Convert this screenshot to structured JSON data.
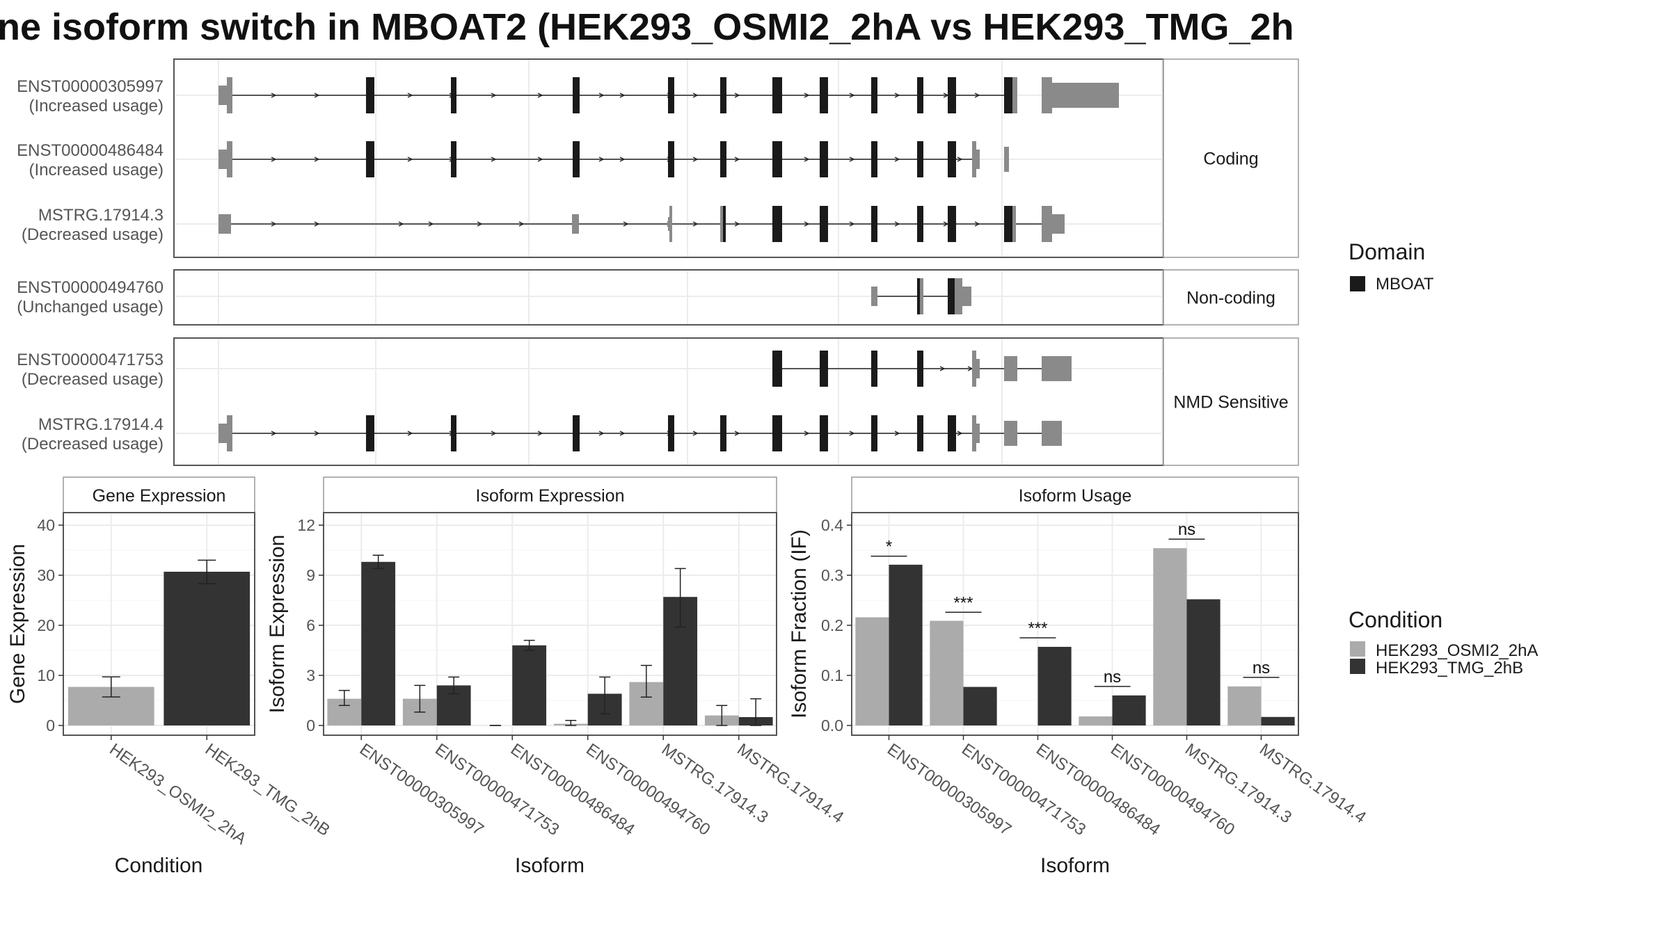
{
  "title": "ne isoform switch in MBOAT2 (HEK293_OSMI2_2hA vs HEK293_TMG_2h",
  "colors": {
    "cond_a": "#ababab",
    "cond_b": "#333333",
    "exon": "#8a8a8a",
    "domain": "#1a1a1a",
    "grid": "#ececec",
    "strip_border": "#999999",
    "panel_border": "#555555"
  },
  "structure": {
    "strips": [
      "Coding",
      "Non-coding",
      "NMD Sensitive"
    ],
    "transcripts": [
      {
        "id": "ENST00000305997",
        "usage": "(Increased usage)",
        "group": 0
      },
      {
        "id": "ENST00000486484",
        "usage": "(Increased usage)",
        "group": 0
      },
      {
        "id": "MSTRG.17914.3",
        "usage": "(Decreased usage)",
        "group": 0
      },
      {
        "id": "ENST00000494760",
        "usage": "(Unchanged usage)",
        "group": 1
      },
      {
        "id": "ENST00000471753",
        "usage": "(Decreased usage)",
        "group": 2
      },
      {
        "id": "MSTRG.17914.4",
        "usage": "(Decreased usage)",
        "group": 2
      }
    ]
  },
  "legend": {
    "domain_title": "Domain",
    "domain_items": [
      "MBOAT"
    ],
    "condition_title": "Condition",
    "condition_items": [
      "HEK293_OSMI2_2hA",
      "HEK293_TMG_2hB"
    ]
  },
  "chart_data": [
    {
      "type": "bar",
      "title": "Gene Expression",
      "xlabel": "Condition",
      "ylabel": "Gene Expression",
      "ylim": [
        0,
        40
      ],
      "yticks": [
        0,
        10,
        20,
        30,
        40
      ],
      "categories": [
        "HEK293_OSMI2_2hA",
        "HEK293_TMG_2hB"
      ],
      "values": [
        7.7,
        30.7
      ],
      "errors": [
        [
          5.7,
          9.7
        ],
        [
          28.3,
          33.0
        ]
      ],
      "grid": true
    },
    {
      "type": "bar",
      "title": "Isoform Expression",
      "xlabel": "Isoform",
      "ylabel": "Isoform Expression",
      "ylim": [
        0,
        12
      ],
      "yticks": [
        0,
        3,
        6,
        9,
        12
      ],
      "categories": [
        "ENST00000305997",
        "ENST00000471753",
        "ENST00000486484",
        "ENST00000494760",
        "MSTRG.17914.3",
        "MSTRG.17914.4"
      ],
      "series": [
        {
          "name": "HEK293_OSMI2_2hA",
          "values": [
            1.6,
            1.6,
            0.0,
            0.1,
            2.6,
            0.6
          ],
          "errors": [
            [
              1.2,
              2.1
            ],
            [
              0.8,
              2.4
            ],
            [
              0.0,
              0.0
            ],
            [
              0.0,
              0.3
            ],
            [
              1.7,
              3.6
            ],
            [
              0.0,
              1.2
            ]
          ]
        },
        {
          "name": "HEK293_TMG_2hB",
          "values": [
            9.8,
            2.4,
            4.8,
            1.9,
            7.7,
            0.5
          ],
          "errors": [
            [
              9.4,
              10.2
            ],
            [
              1.9,
              2.9
            ],
            [
              4.5,
              5.1
            ],
            [
              0.7,
              2.9
            ],
            [
              5.9,
              9.4
            ],
            [
              0.0,
              1.6
            ]
          ]
        }
      ],
      "grid": true
    },
    {
      "type": "bar",
      "title": "Isoform Usage",
      "xlabel": "Isoform",
      "ylabel": "Isoform Fraction (IF)",
      "ylim": [
        0,
        0.4
      ],
      "yticks": [
        0.0,
        0.1,
        0.2,
        0.3,
        0.4
      ],
      "ytick_labels": [
        "0.0",
        "0.1",
        "0.2",
        "0.3",
        "0.4"
      ],
      "categories": [
        "ENST00000305997",
        "ENST00000471753",
        "ENST00000486484",
        "ENST00000494760",
        "MSTRG.17914.3",
        "MSTRG.17914.4"
      ],
      "series": [
        {
          "name": "HEK293_OSMI2_2hA",
          "values": [
            0.216,
            0.209,
            0.0,
            0.018,
            0.354,
            0.078
          ]
        },
        {
          "name": "HEK293_TMG_2hB",
          "values": [
            0.321,
            0.077,
            0.157,
            0.06,
            0.252,
            0.017
          ]
        }
      ],
      "annotations": [
        {
          "category": "ENST00000305997",
          "label": "*",
          "y": 0.338
        },
        {
          "category": "ENST00000471753",
          "label": "***",
          "y": 0.226
        },
        {
          "category": "ENST00000486484",
          "label": "***",
          "y": 0.175
        },
        {
          "category": "ENST00000494760",
          "label": "ns",
          "y": 0.078
        },
        {
          "category": "MSTRG.17914.3",
          "label": "ns",
          "y": 0.372
        },
        {
          "category": "MSTRG.17914.4",
          "label": "ns",
          "y": 0.096
        }
      ],
      "grid": true
    }
  ]
}
